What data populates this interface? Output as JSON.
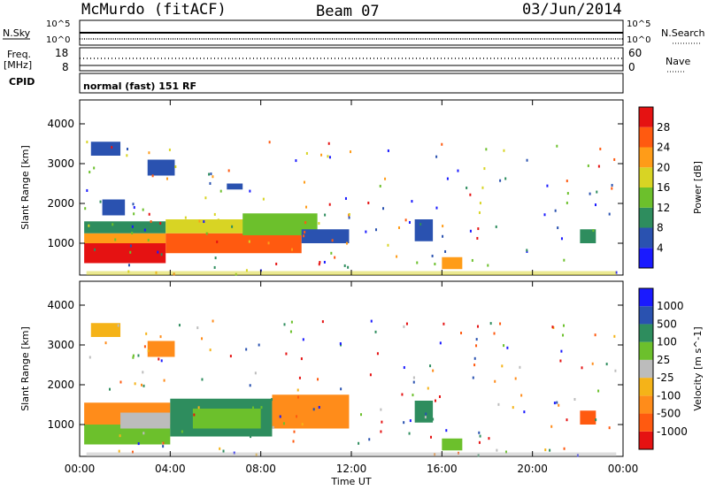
{
  "header": {
    "station": "McMurdo (fitACF)",
    "beam": "Beam 07",
    "date": "03/Jun/2014"
  },
  "strips": {
    "nsky_label": "N.Sky",
    "nsky_ticks": [
      "10^5",
      "10^0"
    ],
    "nsearch_label": "N.Search",
    "nsearch_ticks": [
      "10^5",
      "10^0"
    ],
    "freq_label": "Freq.",
    "freq_unit": "[MHz]",
    "freq_ticks": [
      "18",
      "8"
    ],
    "nave_label": "Nave",
    "nave_ticks": [
      "60",
      "0"
    ],
    "cpid_label": "CPID",
    "cpid_text": "normal (fast) 151 RF"
  },
  "chart_data": [
    {
      "type": "heatmap",
      "name": "power",
      "ylabel": "Slant Range [km]",
      "y_ticks": [
        "1000",
        "2000",
        "3000",
        "4000"
      ],
      "ylim": [
        200,
        4600
      ],
      "xlim": [
        0,
        24
      ],
      "colorbar_label": "Power [dB]",
      "colorbar_ticks": [
        "4",
        "8",
        "12",
        "16",
        "20",
        "24",
        "28"
      ],
      "colors": [
        "#1a1aff",
        "#2a52b0",
        "#2e8d5e",
        "#6cc02c",
        "#d8d424",
        "#ff9c18",
        "#ff5a10",
        "#e51212"
      ],
      "regions": [
        {
          "t0": 0.2,
          "t1": 3.8,
          "r0": 500,
          "r1": 1000,
          "c": 7
        },
        {
          "t0": 0.2,
          "t1": 3.8,
          "r0": 1000,
          "r1": 1250,
          "c": 5
        },
        {
          "t0": 0.2,
          "t1": 3.8,
          "r0": 1250,
          "r1": 1550,
          "c": 2
        },
        {
          "t0": 3.8,
          "t1": 9.8,
          "r0": 750,
          "r1": 1250,
          "c": 6
        },
        {
          "t0": 3.8,
          "t1": 9.8,
          "r0": 1250,
          "r1": 1600,
          "c": 4
        },
        {
          "t0": 7.2,
          "t1": 10.5,
          "r0": 1200,
          "r1": 1750,
          "c": 3
        },
        {
          "t0": 9.8,
          "t1": 11.9,
          "r0": 1000,
          "r1": 1350,
          "c": 1
        },
        {
          "t0": 16.0,
          "t1": 16.9,
          "r0": 350,
          "r1": 650,
          "c": 5
        },
        {
          "t0": 14.8,
          "t1": 15.6,
          "r0": 1050,
          "r1": 1600,
          "c": 1
        },
        {
          "t0": 22.1,
          "t1": 22.8,
          "r0": 1000,
          "r1": 1350,
          "c": 2
        },
        {
          "t0": 0.5,
          "t1": 1.8,
          "r0": 3200,
          "r1": 3550,
          "c": 1
        },
        {
          "t0": 3.0,
          "t1": 4.2,
          "r0": 2700,
          "r1": 3100,
          "c": 1
        },
        {
          "t0": 6.5,
          "t1": 7.2,
          "r0": 2350,
          "r1": 2500,
          "c": 1
        },
        {
          "t0": 1.0,
          "t1": 2.0,
          "r0": 1700,
          "r1": 2100,
          "c": 1
        }
      ]
    },
    {
      "type": "heatmap",
      "name": "velocity",
      "ylabel": "Slant Range [km]",
      "y_ticks": [
        "1000",
        "2000",
        "3000",
        "4000"
      ],
      "ylim": [
        200,
        4600
      ],
      "xlim": [
        0,
        24
      ],
      "x_ticks": [
        "00:00",
        "04:00",
        "08:00",
        "12:00",
        "16:00",
        "20:00",
        "00:00"
      ],
      "xlabel": "Time UT",
      "colorbar_label": "Velocity [m s^-1]",
      "colorbar_ticks": [
        "1000",
        "500",
        "100",
        "25",
        "-25",
        "-100",
        "-500",
        "-1000"
      ],
      "colors": [
        "#e51212",
        "#ff5a10",
        "#ff8c1a",
        "#f5b318",
        "#bcbcbc",
        "#6cc02c",
        "#2e8d5e",
        "#2a52b0",
        "#1a1aff"
      ],
      "regions": [
        {
          "t0": 0.2,
          "t1": 4.0,
          "r0": 500,
          "r1": 1000,
          "c": 5
        },
        {
          "t0": 0.2,
          "t1": 4.0,
          "r0": 1000,
          "r1": 1550,
          "c": 2
        },
        {
          "t0": 1.8,
          "t1": 4.0,
          "r0": 900,
          "r1": 1300,
          "c": 4
        },
        {
          "t0": 4.0,
          "t1": 8.5,
          "r0": 700,
          "r1": 1650,
          "c": 6
        },
        {
          "t0": 5.0,
          "t1": 8.0,
          "r0": 900,
          "r1": 1400,
          "c": 5
        },
        {
          "t0": 8.5,
          "t1": 11.9,
          "r0": 900,
          "r1": 1750,
          "c": 2
        },
        {
          "t0": 16.0,
          "t1": 16.9,
          "r0": 350,
          "r1": 650,
          "c": 5
        },
        {
          "t0": 14.8,
          "t1": 15.6,
          "r0": 1050,
          "r1": 1600,
          "c": 6
        },
        {
          "t0": 22.1,
          "t1": 22.8,
          "r0": 1000,
          "r1": 1350,
          "c": 1
        },
        {
          "t0": 0.5,
          "t1": 1.8,
          "r0": 3200,
          "r1": 3550,
          "c": 3
        },
        {
          "t0": 3.0,
          "t1": 4.2,
          "r0": 2700,
          "r1": 3100,
          "c": 2
        }
      ]
    }
  ]
}
